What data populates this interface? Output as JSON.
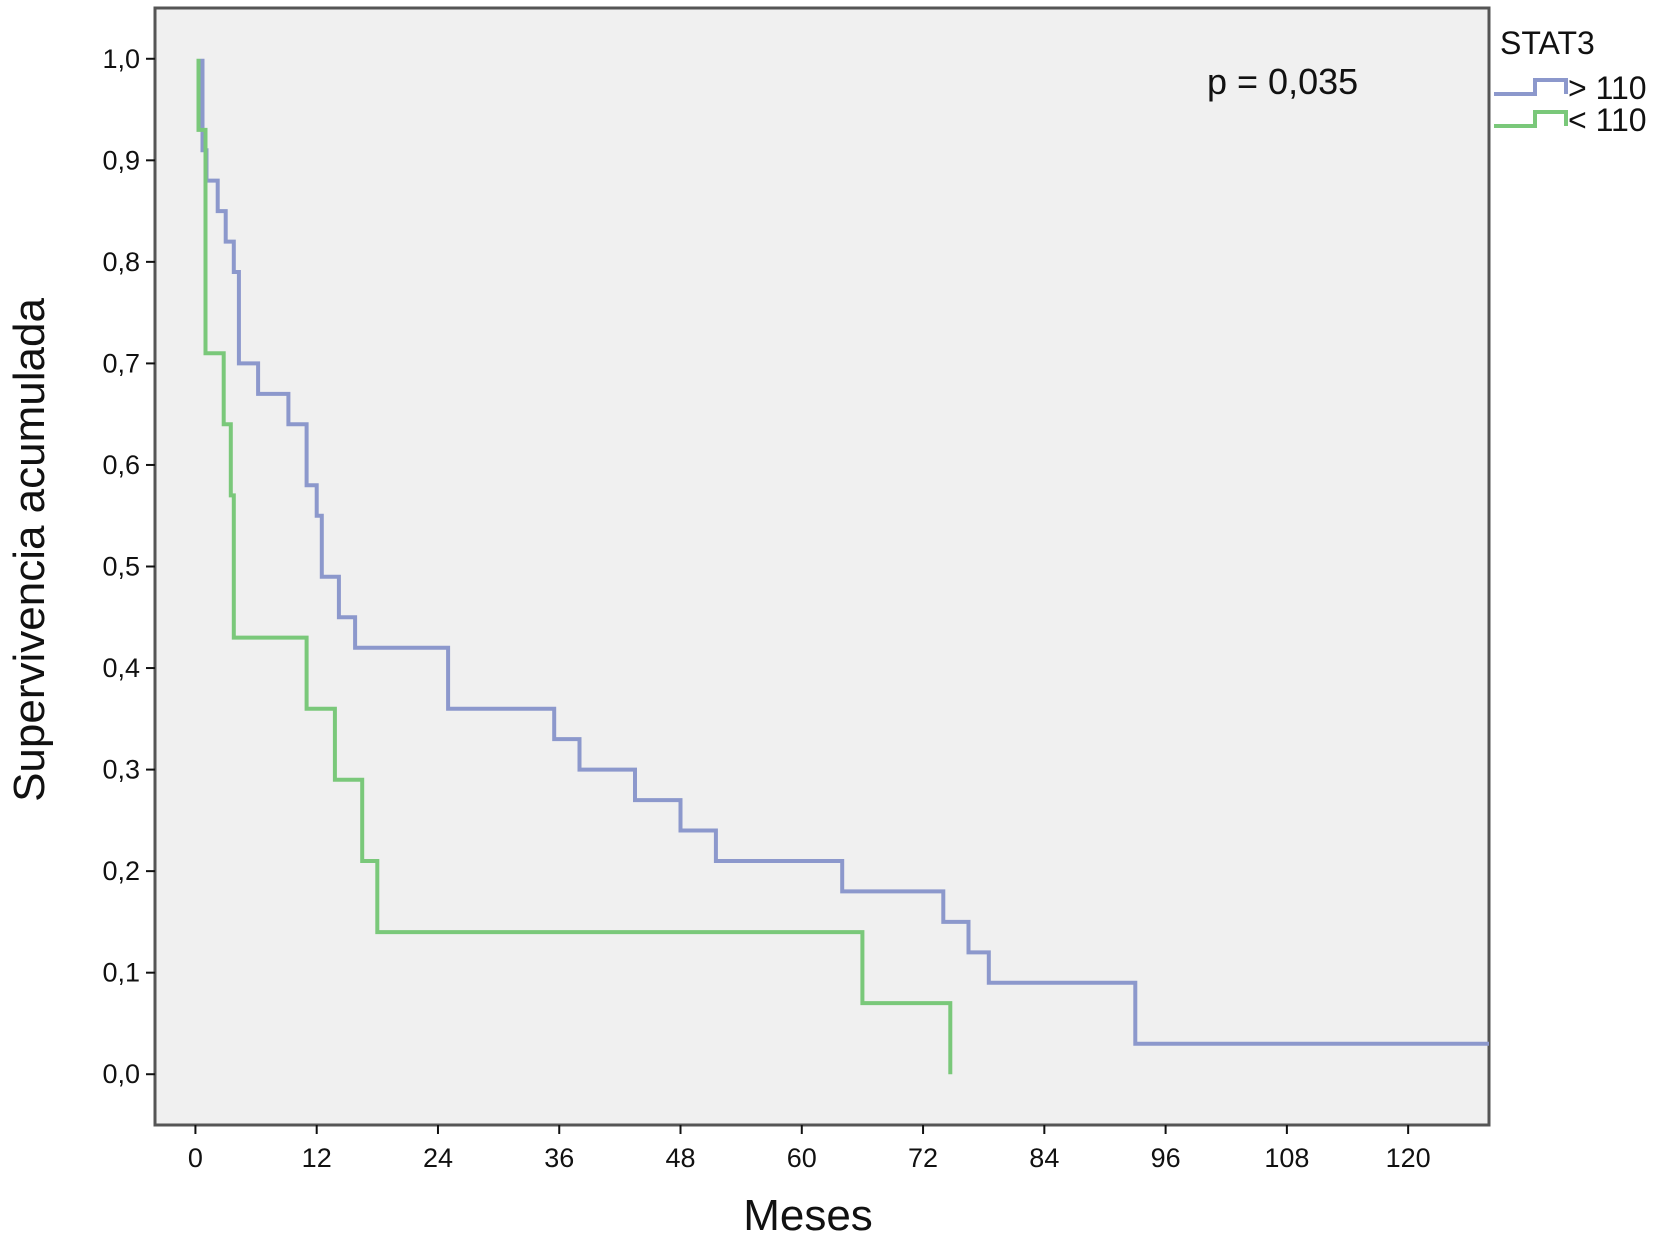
{
  "chart_data": {
    "type": "line",
    "title": "",
    "xlabel": "Meses",
    "ylabel": "Supervivencia acumulada",
    "xlim": [
      -4,
      128
    ],
    "ylim": [
      -0.05,
      1.05
    ],
    "x_ticks": [
      0,
      12,
      24,
      36,
      48,
      60,
      72,
      84,
      96,
      108,
      120
    ],
    "x_tick_labels": [
      "0",
      "12",
      "24",
      "36",
      "48",
      "60",
      "72",
      "84",
      "96",
      "108",
      "120"
    ],
    "y_ticks": [
      0,
      0.1,
      0.2,
      0.3,
      0.4,
      0.5,
      0.6,
      0.7,
      0.8,
      0.9,
      1.0
    ],
    "y_tick_labels": [
      "0,0",
      "0,1",
      "0,2",
      "0,3",
      "0,4",
      "0,5",
      "0,6",
      "0,7",
      "0,8",
      "0,9",
      "1,0"
    ],
    "grid": false,
    "background": "#f0f0f0",
    "annotation": "p = 0,035",
    "legend": {
      "title": "STAT3",
      "placement": "outside-top-right"
    },
    "series": [
      {
        "name": "> 110",
        "color": "#8c98cc",
        "step": true,
        "x": [
          0.7,
          0.7,
          1.1,
          2.2,
          3.0,
          3.8,
          4.3,
          6.2,
          9.2,
          11.0,
          12.0,
          12.5,
          14.2,
          15.8,
          25.0,
          35.5,
          38.0,
          43.5,
          48.0,
          51.5,
          64.0,
          74.0,
          76.5,
          78.5,
          93.0,
          128.0
        ],
        "y": [
          1.0,
          0.91,
          0.88,
          0.85,
          0.82,
          0.79,
          0.7,
          0.67,
          0.64,
          0.58,
          0.55,
          0.49,
          0.45,
          0.42,
          0.36,
          0.33,
          0.3,
          0.27,
          0.24,
          0.21,
          0.18,
          0.15,
          0.12,
          0.09,
          0.03,
          0.03
        ]
      },
      {
        "name": "< 110",
        "color": "#7ac87a",
        "step": true,
        "x": [
          0.3,
          0.3,
          1.0,
          2.8,
          3.5,
          3.8,
          11.0,
          13.8,
          16.5,
          18.0,
          66.0,
          74.7
        ],
        "y": [
          1.0,
          0.93,
          0.71,
          0.64,
          0.57,
          0.43,
          0.36,
          0.29,
          0.21,
          0.14,
          0.07,
          0.0
        ]
      }
    ]
  }
}
